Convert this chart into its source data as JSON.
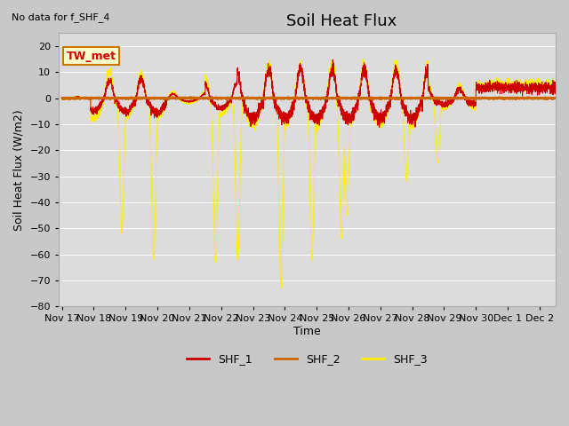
{
  "title": "Soil Heat Flux",
  "ylabel": "Soil Heat Flux (W/m2)",
  "xlabel": "Time",
  "note": "No data for f_SHF_4",
  "annotation": "TW_met",
  "ylim": [
    -80,
    25
  ],
  "yticks": [
    -80,
    -70,
    -60,
    -50,
    -40,
    -30,
    -20,
    -10,
    0,
    10,
    20
  ],
  "xtick_labels": [
    "Nov 17",
    "Nov 18",
    "Nov 19",
    "Nov 20",
    "Nov 21",
    "Nov 22",
    "Nov 23",
    "Nov 24",
    "Nov 25",
    "Nov 26",
    "Nov 27",
    "Nov 28",
    "Nov 29",
    "Nov 30",
    "Dec 1",
    "Dec 2"
  ],
  "bg_color": "#dcdcdc",
  "fig_bg": "#c8c8c8",
  "shf1_color": "#cc0000",
  "shf2_color": "#cc6600",
  "shf3_color": "#ffee00",
  "legend_labels": [
    "SHF_1",
    "SHF_2",
    "SHF_3"
  ],
  "title_fontsize": 13,
  "axis_label_fontsize": 9,
  "tick_fontsize": 8,
  "note_fontsize": 8,
  "annot_fontsize": 9
}
